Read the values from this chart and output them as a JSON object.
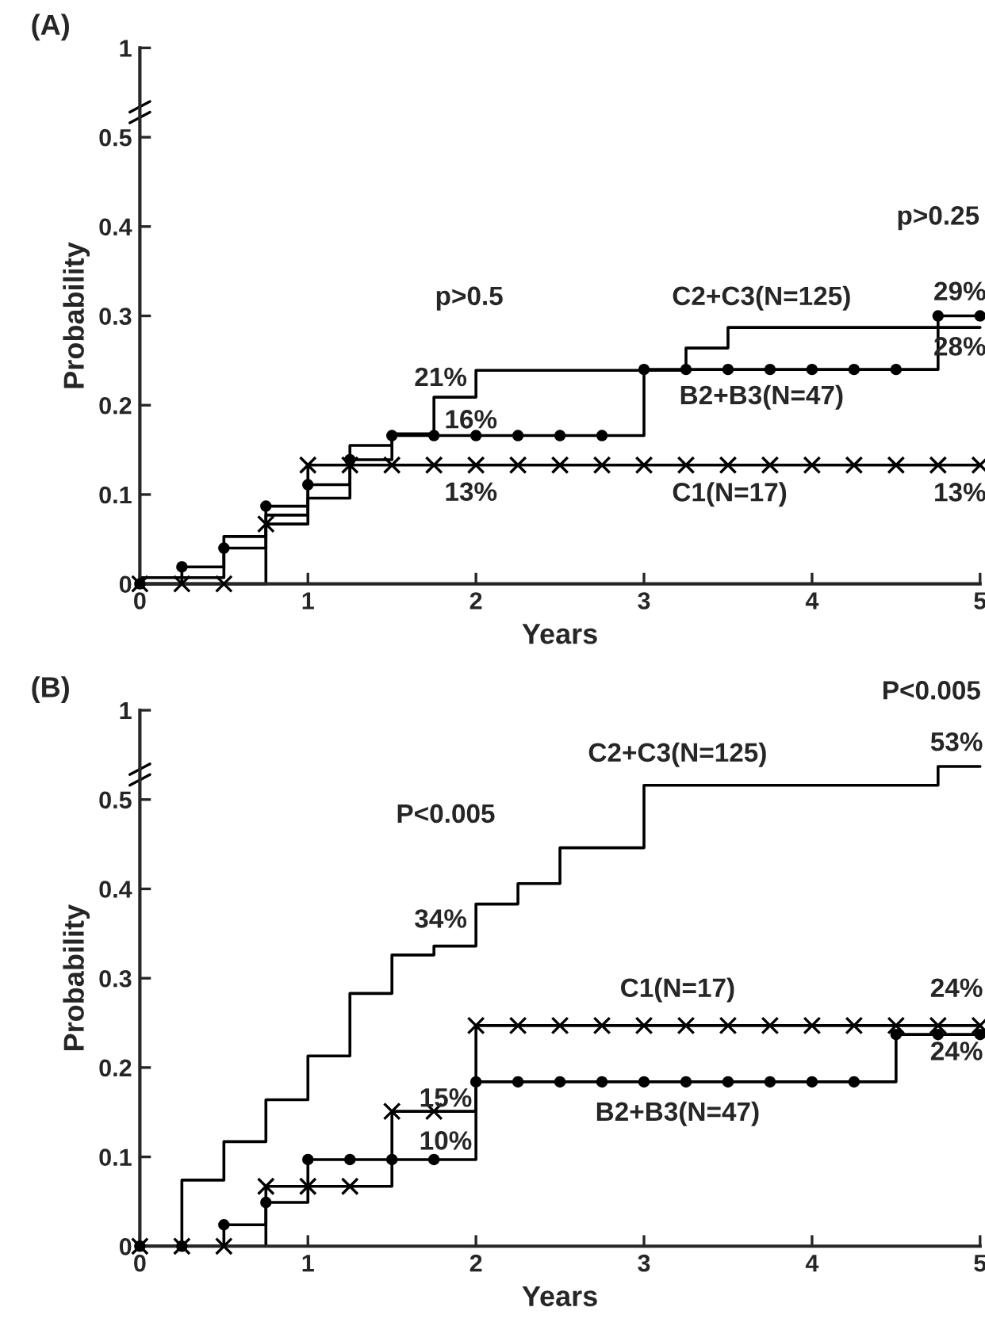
{
  "chart_data": [
    {
      "type": "step",
      "title": "(A)",
      "xlabel": "Years",
      "ylabel": "Probability",
      "xlim": [
        0,
        5
      ],
      "ylim": [
        0,
        0.6
      ],
      "xticks": [
        0,
        1,
        2,
        3,
        4,
        5
      ],
      "yticks": [
        0,
        0.1,
        0.2,
        0.3,
        0.4,
        0.5,
        {
          "value": 0.6,
          "label": "1"
        }
      ],
      "grid": false,
      "legend": false,
      "line_style": "solid",
      "series": [
        {
          "color": "#000000",
          "marker": "circle",
          "x": [
            0,
            0.25,
            0.5,
            0.75,
            1,
            1.25,
            1.5,
            1.75,
            2,
            2.25,
            2.5,
            2.75,
            3,
            3.25,
            3.5,
            3.75,
            4,
            4.25,
            4.5,
            4.75,
            5
          ],
          "values": [
            0,
            0.019,
            0.04,
            0.087,
            0.111,
            0.139,
            0.166,
            0.166,
            0.166,
            0.166,
            0.166,
            0.166,
            0.24,
            0.24,
            0.24,
            0.24,
            0.24,
            0.24,
            0.24,
            0.3,
            0.3
          ]
        },
        {
          "color": "#000000",
          "marker": "cross",
          "x": [
            0,
            0.25,
            0.5,
            0.75,
            1,
            1.25,
            1.5,
            1.75,
            2,
            2.25,
            2.5,
            2.75,
            3,
            3.25,
            3.5,
            3.75,
            4,
            4.25,
            4.5,
            4.75,
            5
          ],
          "values": [
            0,
            0,
            0,
            0.067,
            0.133,
            0.133,
            0.133,
            0.133,
            0.133,
            0.133,
            0.133,
            0.133,
            0.133,
            0.133,
            0.133,
            0.133,
            0.133,
            0.133,
            0.133,
            0.133,
            0.133
          ]
        },
        {
          "color": "#000000",
          "marker": "none",
          "x": [
            0,
            0.5,
            0.75,
            1,
            1.25,
            1.5,
            1.75,
            2,
            3.25,
            3.5,
            5
          ],
          "values": [
            0.007,
            0.053,
            0.077,
            0.096,
            0.155,
            0.168,
            0.209,
            0.239,
            0.264,
            0.287,
            0.287
          ]
        }
      ],
      "annotations": [
        "p>0.5",
        "p>0.25",
        "C2+C3(N=125)",
        "29%",
        "28%",
        "21%",
        "16%",
        "B2+B3(N=47)",
        "13%",
        "C1(N=17)",
        "13%"
      ]
    },
    {
      "type": "step",
      "title": "(B)",
      "xlabel": "Years",
      "ylabel": "Probability",
      "xlim": [
        0,
        5
      ],
      "ylim": [
        0,
        0.6
      ],
      "xticks": [
        0,
        1,
        2,
        3,
        4,
        5
      ],
      "yticks": [
        0,
        0.1,
        0.2,
        0.3,
        0.4,
        0.5,
        {
          "value": 0.6,
          "label": "1"
        }
      ],
      "grid": false,
      "legend": false,
      "line_style": "solid",
      "series": [
        {
          "color": "#000000",
          "marker": "circle",
          "x": [
            0,
            0.25,
            0.5,
            0.75,
            1,
            1.25,
            1.5,
            1.75,
            2,
            2.25,
            2.5,
            2.75,
            3,
            3.25,
            3.5,
            3.75,
            4,
            4.25,
            4.5,
            4.75,
            5
          ],
          "values": [
            0,
            0,
            0.024,
            0.049,
            0.097,
            0.097,
            0.097,
            0.097,
            0.184,
            0.184,
            0.184,
            0.184,
            0.184,
            0.184,
            0.184,
            0.184,
            0.184,
            0.184,
            0.237,
            0.237,
            0.237
          ]
        },
        {
          "color": "#000000",
          "marker": "cross",
          "x": [
            0,
            0.25,
            0.5,
            0.75,
            1,
            1.25,
            1.5,
            1.75,
            2,
            2.25,
            2.5,
            2.75,
            3,
            3.25,
            3.5,
            3.75,
            4,
            4.25,
            4.5,
            4.75,
            5
          ],
          "values": [
            0,
            0,
            0,
            0.067,
            0.067,
            0.067,
            0.151,
            0.151,
            0.247,
            0.247,
            0.247,
            0.247,
            0.247,
            0.247,
            0.247,
            0.247,
            0.247,
            0.247,
            0.247,
            0.247,
            0.247
          ]
        },
        {
          "color": "#000000",
          "marker": "none",
          "x": [
            0,
            0.25,
            0.5,
            0.75,
            1,
            1.25,
            1.5,
            1.75,
            2,
            2.25,
            2.5,
            3,
            4.75,
            5
          ],
          "values": [
            0,
            0.074,
            0.117,
            0.164,
            0.213,
            0.283,
            0.326,
            0.336,
            0.383,
            0.406,
            0.446,
            0.516,
            0.537,
            0.537
          ]
        }
      ],
      "annotations": [
        "P<0.005",
        "C2+C3(N=125)",
        "53%",
        "P<0.005",
        "34%",
        "C1(N=17)",
        "24%",
        "24%",
        "15%",
        "10%",
        "B2+B3(N=47)"
      ]
    }
  ]
}
